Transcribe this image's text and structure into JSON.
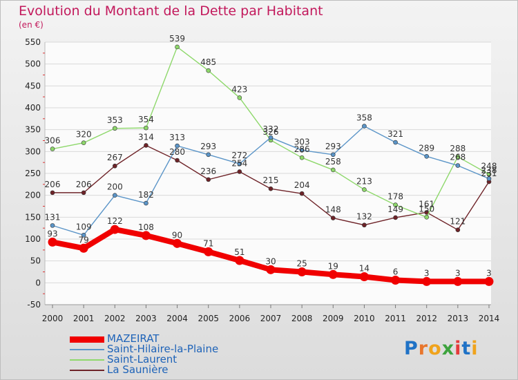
{
  "title": "Evolution du Montant de la Dette par Habitant",
  "unit": "(en €)",
  "logo_text": "Proxiti",
  "chart_data": {
    "type": "line",
    "x": [
      "2000",
      "2001",
      "2002",
      "2003",
      "2004",
      "2005",
      "2006",
      "2007",
      "2008",
      "2009",
      "2010",
      "2011",
      "2012",
      "2013",
      "2014"
    ],
    "yticks": [
      "550",
      "500",
      "450",
      "400",
      "350",
      "300",
      "250",
      "200",
      "150",
      "100",
      "50",
      "0",
      "-50"
    ],
    "ylim": [
      -50,
      550
    ],
    "grid": "horizontal",
    "legend": "bottom-left",
    "series": [
      {
        "name": "MAZEIRAT",
        "color": "#f00000",
        "values": [
          93,
          79,
          122,
          108,
          90,
          71,
          51,
          30,
          25,
          19,
          14,
          6,
          3,
          3,
          3
        ],
        "labels": [
          "93",
          "79",
          "122",
          "108",
          "90",
          "71",
          "51",
          "30",
          "25",
          "19",
          "14",
          "6",
          "3",
          "3",
          "3"
        ]
      },
      {
        "name": "Saint-Hilaire-la-Plaine",
        "color": "#5b95c8",
        "values": [
          131,
          109,
          200,
          182,
          313,
          293,
          272,
          332,
          303,
          293,
          358,
          321,
          289,
          268,
          238
        ],
        "labels": [
          "131",
          "109",
          "200",
          "182",
          "313",
          "293",
          "272",
          "332",
          "303",
          "293",
          "358",
          "321",
          "289",
          "268",
          "238"
        ]
      },
      {
        "name": "Saint-Laurent",
        "color": "#8ed86b",
        "values": [
          306,
          320,
          353,
          354,
          539,
          485,
          423,
          326,
          286,
          258,
          213,
          178,
          150,
          288,
          248
        ],
        "labels": [
          "306",
          "320",
          "353",
          "354",
          "539",
          "485",
          "423",
          "326",
          "286",
          "258",
          "213",
          "178",
          "150",
          "288",
          "248"
        ]
      },
      {
        "name": "La Saunière",
        "color": "#6e2328",
        "values": [
          206,
          206,
          267,
          314,
          280,
          236,
          254,
          215,
          204,
          148,
          132,
          149,
          161,
          121,
          231
        ],
        "labels": [
          "206",
          "206",
          "267",
          "314",
          "280",
          "236",
          "254",
          "215",
          "204",
          "148",
          "132",
          "149",
          "161",
          "121",
          "231"
        ]
      }
    ]
  }
}
